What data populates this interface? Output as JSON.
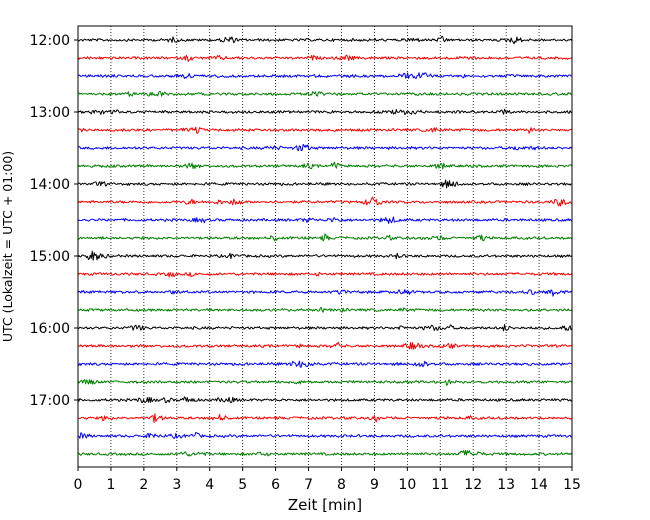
{
  "chart_data": {
    "type": "line",
    "title": "",
    "xlabel": "Zeit  [min]",
    "ylabel": "UTC (Lokalzeit = UTC + 01:00)",
    "xlim": [
      0,
      15
    ],
    "x_ticks": [
      "0",
      "1",
      "2",
      "3",
      "4",
      "5",
      "6",
      "7",
      "8",
      "9",
      "10",
      "11",
      "12",
      "13",
      "14",
      "15"
    ],
    "y_ticks": [
      "12:00",
      "13:00",
      "14:00",
      "15:00",
      "16:00",
      "17:00"
    ],
    "grid": "vertical dotted lines at each minute",
    "legend": "none",
    "trace_interval_minutes": 15,
    "trace_colors": [
      "#000000",
      "#ff0000",
      "#0000ff",
      "#008000"
    ],
    "series": [
      {
        "start": "12:00",
        "color": "#000000"
      },
      {
        "start": "12:15",
        "color": "#ff0000"
      },
      {
        "start": "12:30",
        "color": "#0000ff"
      },
      {
        "start": "12:45",
        "color": "#008000"
      },
      {
        "start": "13:00",
        "color": "#000000"
      },
      {
        "start": "13:15",
        "color": "#ff0000"
      },
      {
        "start": "13:30",
        "color": "#0000ff"
      },
      {
        "start": "13:45",
        "color": "#008000"
      },
      {
        "start": "14:00",
        "color": "#000000"
      },
      {
        "start": "14:15",
        "color": "#ff0000"
      },
      {
        "start": "14:30",
        "color": "#0000ff"
      },
      {
        "start": "14:45",
        "color": "#008000"
      },
      {
        "start": "15:00",
        "color": "#000000"
      },
      {
        "start": "15:15",
        "color": "#ff0000"
      },
      {
        "start": "15:30",
        "color": "#0000ff"
      },
      {
        "start": "15:45",
        "color": "#008000"
      },
      {
        "start": "16:00",
        "color": "#000000"
      },
      {
        "start": "16:15",
        "color": "#ff0000"
      },
      {
        "start": "16:30",
        "color": "#0000ff"
      },
      {
        "start": "16:45",
        "color": "#008000"
      },
      {
        "start": "17:00",
        "color": "#000000"
      },
      {
        "start": "17:15",
        "color": "#ff0000"
      },
      {
        "start": "17:30",
        "color": "#0000ff"
      },
      {
        "start": "17:45",
        "color": "#008000"
      }
    ]
  }
}
